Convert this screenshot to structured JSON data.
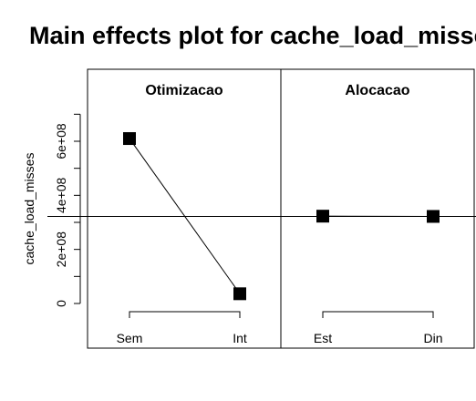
{
  "chart_data": {
    "type": "line",
    "title": "Main effects plot for cache_load_misses",
    "ylabel": "cache_load_misses",
    "ylim": [
      -20000000,
      780000000
    ],
    "y_ticks": [
      0,
      200000000,
      400000000,
      600000000
    ],
    "y_tick_labels": [
      "0",
      "2e+08",
      "4e+08",
      "6e+08"
    ],
    "grand_mean": 322000000,
    "grid": false,
    "panels": [
      {
        "factor": "Otimizacao",
        "levels": [
          "Sem",
          "Int"
        ],
        "means": [
          610000000,
          36000000
        ]
      },
      {
        "factor": "Alocacao",
        "levels": [
          "Est",
          "Din"
        ],
        "means": [
          323000000,
          322000000
        ]
      }
    ]
  }
}
